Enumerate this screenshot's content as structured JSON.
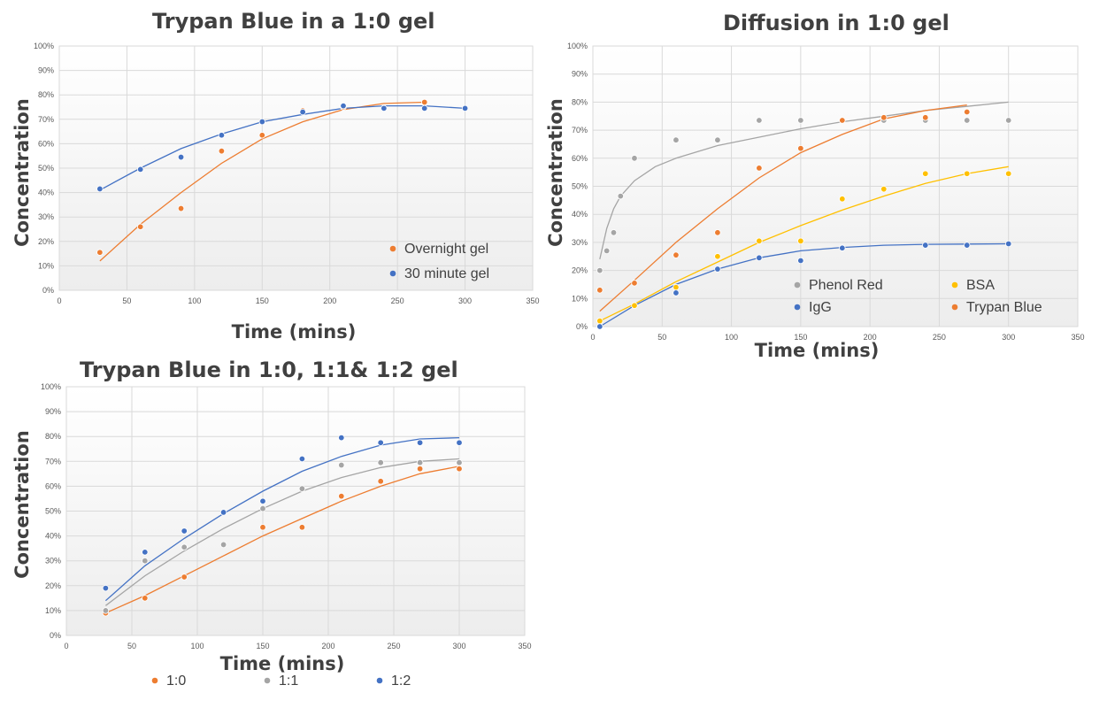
{
  "chart_data": [
    {
      "id": "c1",
      "type": "scatter",
      "title": "Trypan Blue in a 1:0 gel",
      "xlabel": "Time (mins)",
      "ylabel": "Concentration",
      "xlim": [
        0,
        350
      ],
      "ylim": [
        0,
        1
      ],
      "x_ticks": [
        "0",
        "50",
        "100",
        "150",
        "200",
        "250",
        "300",
        "350"
      ],
      "y_ticks": [
        "0%",
        "10%",
        "20%",
        "30%",
        "40%",
        "50%",
        "60%",
        "70%",
        "80%",
        "90%",
        "100%"
      ],
      "grid": true,
      "legend_position": "bottom-right",
      "series": [
        {
          "name": "Overnight gel",
          "color": "#ED7D31",
          "x": [
            30,
            60,
            90,
            120,
            150,
            180,
            210,
            270
          ],
          "y": [
            0.155,
            0.26,
            0.335,
            0.57,
            0.635,
            0.735,
            0.75,
            0.77
          ],
          "trend_x": [
            30,
            60,
            90,
            120,
            150,
            180,
            210,
            240,
            270
          ],
          "trend_y": [
            0.12,
            0.27,
            0.4,
            0.52,
            0.62,
            0.69,
            0.74,
            0.765,
            0.77
          ]
        },
        {
          "name": "30 minute gel",
          "color": "#4472C4",
          "x": [
            30,
            60,
            90,
            120,
            150,
            180,
            210,
            240,
            270,
            300
          ],
          "y": [
            0.415,
            0.495,
            0.545,
            0.635,
            0.69,
            0.73,
            0.755,
            0.745,
            0.745,
            0.745
          ],
          "trend_x": [
            30,
            60,
            90,
            120,
            150,
            180,
            210,
            240,
            270,
            300
          ],
          "trend_y": [
            0.41,
            0.5,
            0.58,
            0.64,
            0.69,
            0.72,
            0.745,
            0.755,
            0.755,
            0.745
          ]
        }
      ]
    },
    {
      "id": "c2",
      "type": "scatter",
      "title": "Diffusion in 1:0 gel",
      "xlabel": "Time (mins)",
      "ylabel": "Concentration",
      "xlim": [
        0,
        350
      ],
      "ylim": [
        0,
        1
      ],
      "x_ticks": [
        "0",
        "50",
        "100",
        "150",
        "200",
        "250",
        "300",
        "350"
      ],
      "y_ticks": [
        "0%",
        "10%",
        "20%",
        "30%",
        "40%",
        "50%",
        "60%",
        "70%",
        "80%",
        "90%",
        "100%"
      ],
      "grid": true,
      "legend_position": "bottom",
      "series": [
        {
          "name": "Phenol Red",
          "color": "#A5A5A5",
          "x": [
            5,
            10,
            15,
            20,
            30,
            60,
            90,
            120,
            150,
            180,
            210,
            240,
            270,
            300
          ],
          "y": [
            0.2,
            0.27,
            0.335,
            0.465,
            0.6,
            0.665,
            0.665,
            0.735,
            0.735,
            0.735,
            0.735,
            0.735,
            0.735,
            0.735
          ],
          "trend_x": [
            5,
            10,
            15,
            20,
            30,
            45,
            60,
            90,
            120,
            150,
            180,
            210,
            240,
            270,
            300
          ],
          "trend_y": [
            0.24,
            0.35,
            0.42,
            0.465,
            0.52,
            0.57,
            0.6,
            0.645,
            0.675,
            0.705,
            0.73,
            0.75,
            0.77,
            0.785,
            0.8
          ]
        },
        {
          "name": "BSA",
          "color": "#FFC000",
          "x": [
            5,
            30,
            60,
            90,
            120,
            150,
            180,
            210,
            240,
            270,
            300
          ],
          "y": [
            0.02,
            0.075,
            0.14,
            0.25,
            0.305,
            0.305,
            0.455,
            0.49,
            0.545,
            0.545,
            0.545
          ],
          "trend_x": [
            5,
            30,
            60,
            90,
            120,
            150,
            180,
            210,
            240,
            270,
            300
          ],
          "trend_y": [
            0.02,
            0.08,
            0.16,
            0.23,
            0.3,
            0.36,
            0.415,
            0.465,
            0.51,
            0.545,
            0.57
          ]
        },
        {
          "name": "IgG",
          "color": "#4472C4",
          "x": [
            5,
            60,
            90,
            120,
            150,
            180,
            240,
            270,
            300
          ],
          "y": [
            0.0,
            0.12,
            0.205,
            0.245,
            0.235,
            0.28,
            0.29,
            0.29,
            0.295
          ],
          "trend_x": [
            5,
            30,
            60,
            90,
            120,
            150,
            180,
            210,
            240,
            270,
            300
          ],
          "trend_y": [
            0.0,
            0.075,
            0.15,
            0.205,
            0.245,
            0.27,
            0.282,
            0.29,
            0.293,
            0.294,
            0.295
          ]
        },
        {
          "name": "Trypan Blue",
          "color": "#ED7D31",
          "x": [
            5,
            30,
            60,
            90,
            120,
            150,
            180,
            210,
            240,
            270
          ],
          "y": [
            0.13,
            0.155,
            0.255,
            0.335,
            0.565,
            0.635,
            0.735,
            0.745,
            0.745,
            0.765
          ],
          "trend_x": [
            5,
            30,
            60,
            90,
            120,
            150,
            180,
            210,
            240,
            270
          ],
          "trend_y": [
            0.055,
            0.165,
            0.3,
            0.42,
            0.53,
            0.62,
            0.685,
            0.74,
            0.77,
            0.79
          ]
        }
      ]
    },
    {
      "id": "c3",
      "type": "scatter",
      "title": "Trypan Blue in 1:0, 1:1& 1:2 gel",
      "xlabel": "Time (mins)",
      "ylabel": "Concentration",
      "xlim": [
        0,
        350
      ],
      "ylim": [
        0,
        1
      ],
      "x_ticks": [
        "0",
        "50",
        "100",
        "150",
        "200",
        "250",
        "300",
        "350"
      ],
      "y_ticks": [
        "0%",
        "10%",
        "20%",
        "30%",
        "40%",
        "50%",
        "60%",
        "70%",
        "80%",
        "90%",
        "100%"
      ],
      "grid": true,
      "legend_position": "bottom",
      "series": [
        {
          "name": "1:0",
          "color": "#ED7D31",
          "x": [
            30,
            60,
            90,
            150,
            180,
            210,
            240,
            270,
            300
          ],
          "y": [
            0.09,
            0.15,
            0.235,
            0.435,
            0.435,
            0.56,
            0.62,
            0.67,
            0.67
          ],
          "trend_x": [
            30,
            60,
            90,
            120,
            150,
            180,
            210,
            240,
            270,
            300
          ],
          "trend_y": [
            0.09,
            0.16,
            0.24,
            0.32,
            0.4,
            0.47,
            0.54,
            0.6,
            0.65,
            0.68
          ]
        },
        {
          "name": "1:1",
          "color": "#A5A5A5",
          "x": [
            30,
            60,
            90,
            120,
            150,
            180,
            210,
            240,
            270,
            300
          ],
          "y": [
            0.1,
            0.3,
            0.355,
            0.365,
            0.51,
            0.59,
            0.685,
            0.695,
            0.695,
            0.695
          ],
          "trend_x": [
            30,
            60,
            90,
            120,
            150,
            180,
            210,
            240,
            270,
            300
          ],
          "trend_y": [
            0.12,
            0.24,
            0.34,
            0.43,
            0.51,
            0.58,
            0.635,
            0.675,
            0.7,
            0.71
          ]
        },
        {
          "name": "1:2",
          "color": "#4472C4",
          "x": [
            30,
            60,
            90,
            120,
            150,
            180,
            210,
            240,
            270,
            300
          ],
          "y": [
            0.19,
            0.335,
            0.42,
            0.495,
            0.54,
            0.71,
            0.795,
            0.775,
            0.775,
            0.775
          ],
          "trend_x": [
            30,
            60,
            90,
            120,
            150,
            180,
            210,
            240,
            270,
            300
          ],
          "trend_y": [
            0.14,
            0.28,
            0.39,
            0.49,
            0.58,
            0.66,
            0.72,
            0.765,
            0.79,
            0.795
          ]
        }
      ]
    }
  ]
}
